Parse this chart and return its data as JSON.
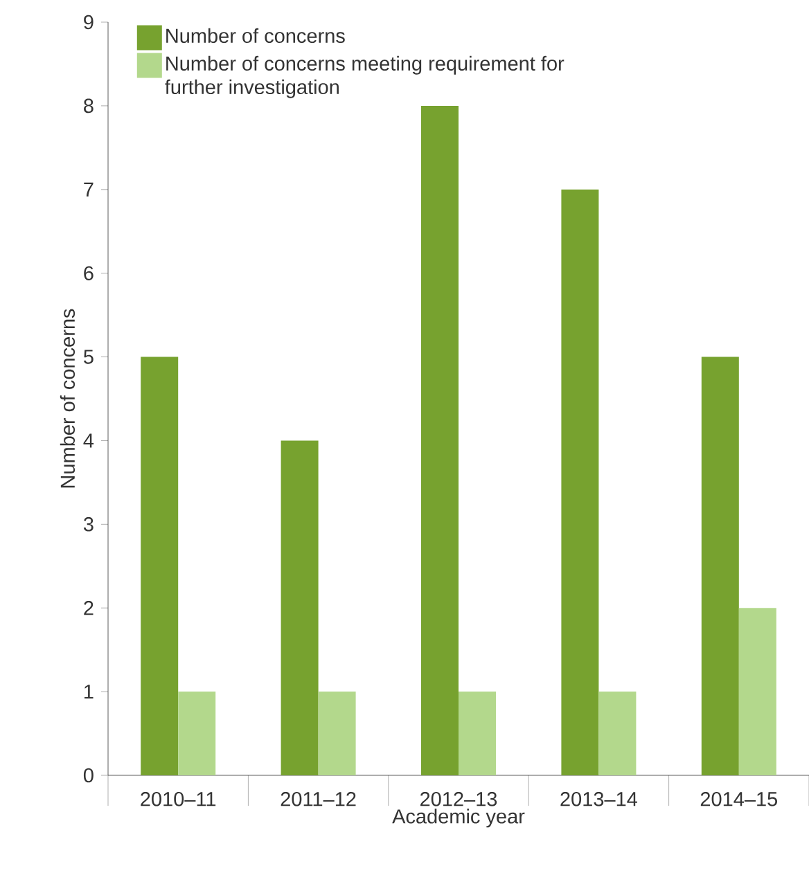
{
  "chart_data": {
    "type": "bar",
    "xlabel": "Academic year",
    "ylabel": "Number of concerns",
    "categories": [
      "2010–11",
      "2011–12",
      "2012–13",
      "2013–14",
      "2014–15"
    ],
    "series": [
      {
        "name": "Number of concerns",
        "color": "#77a22f",
        "values": [
          5,
          4,
          8,
          7,
          5
        ]
      },
      {
        "name": "Number of concerns meeting requirement for further investigation",
        "color": "#b3d88c",
        "values": [
          1,
          1,
          1,
          1,
          2
        ]
      }
    ],
    "ylim": [
      0,
      9
    ],
    "yticks": [
      0,
      1,
      2,
      3,
      4,
      5,
      6,
      7,
      8,
      9
    ],
    "grid": false,
    "legend": "top left"
  }
}
